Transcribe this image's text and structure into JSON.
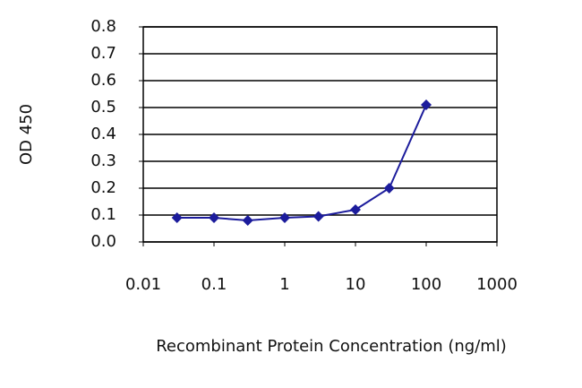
{
  "chart_data": {
    "type": "line",
    "y_label": "OD 450",
    "x_label": "Recombinant Protein Concentration (ng/ml)",
    "x": [
      0.03,
      0.1,
      0.3,
      1,
      3,
      10,
      30,
      100
    ],
    "values": [
      0.09,
      0.09,
      0.08,
      0.09,
      0.095,
      0.12,
      0.2,
      0.51
    ],
    "color": "#1c1c9c",
    "xlim": [
      0.01,
      1000
    ],
    "xticks": [
      0.01,
      0.1,
      1,
      10,
      100,
      1000
    ],
    "xscale": "log",
    "ylim": [
      0,
      0.8
    ],
    "yticks": [
      {
        "value": 0,
        "label": "0.0"
      },
      0.1,
      0.2,
      0.3,
      0.4,
      0.5,
      0.6,
      0.7,
      0.8
    ],
    "grid": true
  }
}
